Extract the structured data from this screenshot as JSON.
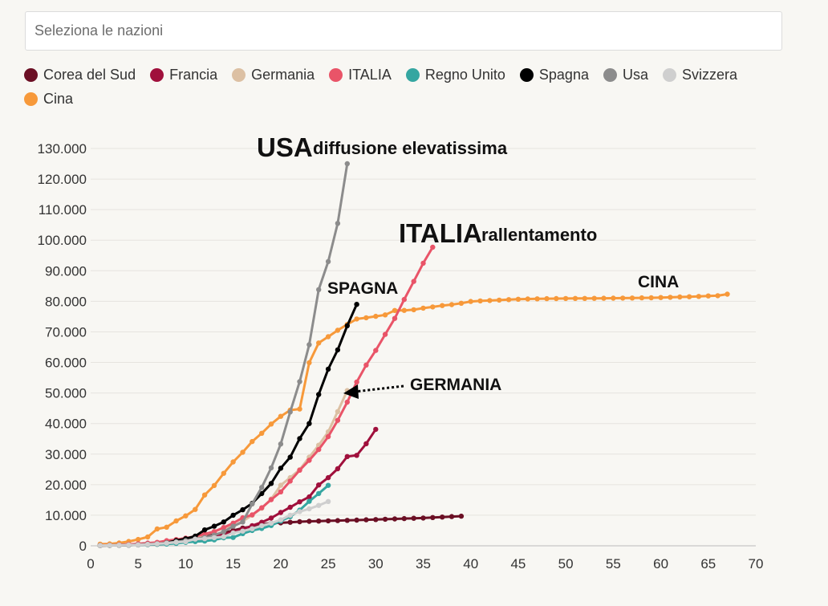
{
  "search": {
    "placeholder": "Seleziona le nazioni"
  },
  "legend": [
    {
      "key": "corea",
      "label": "Corea del Sud",
      "color": "#6b0f24"
    },
    {
      "key": "francia",
      "label": "Francia",
      "color": "#a0103c"
    },
    {
      "key": "germania",
      "label": "Germania",
      "color": "#dcc0a3"
    },
    {
      "key": "italia",
      "label": "ITALIA",
      "color": "#e95468"
    },
    {
      "key": "regno-unito",
      "label": "Regno Unito",
      "color": "#35a6a1"
    },
    {
      "key": "spagna",
      "label": "Spagna",
      "color": "#000000"
    },
    {
      "key": "usa",
      "label": "Usa",
      "color": "#8c8c8c"
    },
    {
      "key": "svizzera",
      "label": "Svizzera",
      "color": "#cfcfcf"
    },
    {
      "key": "cina",
      "label": "Cina",
      "color": "#f7993a"
    }
  ],
  "annotations": {
    "usa_big": "USA",
    "usa_small": "diffusione elevatissima",
    "italia_big": "ITALIA",
    "italia_small": "rallentamento",
    "spagna": "SPAGNA",
    "cina": "CINA",
    "germania": "GERMANIA"
  },
  "chart_data": {
    "type": "line",
    "xlim": [
      0,
      70
    ],
    "ylim": [
      0,
      130000
    ],
    "xticks": [
      0,
      5,
      10,
      15,
      20,
      25,
      30,
      35,
      40,
      45,
      50,
      55,
      60,
      65,
      70
    ],
    "xtick_labels": [
      "0",
      "5",
      "10",
      "15",
      "20",
      "25",
      "30",
      "35",
      "40",
      "45",
      "50",
      "55",
      "60",
      "65",
      "70"
    ],
    "yticks": [
      0,
      10000,
      20000,
      30000,
      40000,
      50000,
      60000,
      70000,
      80000,
      90000,
      100000,
      110000,
      120000,
      130000
    ],
    "ytick_labels": [
      "0",
      "10.000",
      "20.000",
      "30.000",
      "40.000",
      "50.000",
      "60.000",
      "70.000",
      "80.000",
      "90.000",
      "100.000",
      "110.000",
      "120.000",
      "130.000"
    ],
    "grid": true,
    "series": [
      {
        "name": "Cina",
        "color": "#f7993a",
        "x": [
          1,
          2,
          3,
          4,
          5,
          6,
          7,
          8,
          9,
          10,
          11,
          12,
          13,
          14,
          15,
          16,
          17,
          18,
          19,
          20,
          21,
          22,
          23,
          24,
          25,
          26,
          27,
          28,
          29,
          30,
          31,
          32,
          33,
          34,
          35,
          36,
          37,
          38,
          39,
          40,
          41,
          42,
          43,
          44,
          45,
          46,
          47,
          48,
          49,
          50,
          51,
          52,
          53,
          54,
          55,
          56,
          57,
          58,
          59,
          60,
          61,
          62,
          63,
          64,
          65,
          66,
          67
        ],
        "y": [
          548,
          643,
          920,
          1406,
          2075,
          2877,
          5509,
          6087,
          8141,
          9802,
          11891,
          16630,
          19716,
          23707,
          27440,
          30587,
          34110,
          36814,
          39829,
          42354,
          44386,
          44759,
          59895,
          66358,
          68413,
          70513,
          72434,
          74211,
          74619,
          75077,
          75550,
          77001,
          77022,
          77241,
          77754,
          78166,
          78600,
          78928,
          79356,
          79932,
          80136,
          80261,
          80386,
          80537,
          80690,
          80770,
          80823,
          80860,
          80887,
          80921,
          80932,
          80945,
          80977,
          81003,
          81021,
          81048,
          81077,
          81116,
          81151,
          81235,
          81300,
          81416,
          81498,
          81600,
          81747,
          81846,
          82341
        ]
      },
      {
        "name": "Corea del Sud",
        "color": "#6b0f24",
        "x": [
          1,
          2,
          3,
          4,
          5,
          6,
          7,
          8,
          9,
          10,
          11,
          12,
          13,
          14,
          15,
          16,
          17,
          18,
          19,
          20,
          21,
          22,
          23,
          24,
          25,
          26,
          27,
          28,
          29,
          30,
          31,
          32,
          33,
          34,
          35,
          36,
          37,
          38,
          39
        ],
        "y": [
          100,
          150,
          250,
          350,
          450,
          600,
          800,
          1100,
          1500,
          2000,
          2400,
          3100,
          3700,
          4200,
          5000,
          5800,
          6300,
          7000,
          7400,
          7500,
          7700,
          7870,
          8000,
          8090,
          8160,
          8240,
          8320,
          8400,
          8500,
          8600,
          8700,
          8800,
          8900,
          9000,
          9100,
          9250,
          9400,
          9550,
          9700
        ]
      },
      {
        "name": "Francia",
        "color": "#a0103c",
        "x": [
          1,
          2,
          3,
          4,
          5,
          6,
          7,
          8,
          9,
          10,
          11,
          12,
          13,
          14,
          15,
          16,
          17,
          18,
          19,
          20,
          21,
          22,
          23,
          24,
          25,
          26,
          27,
          28,
          29,
          30
        ],
        "y": [
          100,
          130,
          190,
          240,
          290,
          420,
          650,
          950,
          1200,
          1400,
          1800,
          2300,
          2900,
          3700,
          4500,
          5400,
          6600,
          7700,
          9100,
          10900,
          12600,
          14400,
          16000,
          19900,
          22300,
          25200,
          29200,
          29600,
          33400,
          38100
        ]
      },
      {
        "name": "Germania",
        "color": "#dcc0a3",
        "x": [
          1,
          2,
          3,
          4,
          5,
          6,
          7,
          8,
          9,
          10,
          11,
          12,
          13,
          14,
          15,
          16,
          17,
          18,
          19,
          20,
          21,
          22,
          23,
          24,
          25,
          26,
          27
        ],
        "y": [
          100,
          130,
          200,
          260,
          400,
          680,
          850,
          1150,
          1500,
          1900,
          2750,
          3700,
          4600,
          5800,
          6500,
          8000,
          10000,
          12300,
          15300,
          19800,
          22300,
          24900,
          29000,
          32900,
          37300,
          43900,
          50800
        ]
      },
      {
        "name": "ITALIA",
        "color": "#e95468",
        "x": [
          1,
          2,
          3,
          4,
          5,
          6,
          7,
          8,
          9,
          10,
          11,
          12,
          13,
          14,
          15,
          16,
          17,
          18,
          19,
          20,
          21,
          22,
          23,
          24,
          25,
          26,
          27,
          28,
          29,
          30,
          31,
          32,
          33,
          34,
          35,
          36
        ],
        "y": [
          150,
          220,
          320,
          450,
          650,
          890,
          1130,
          1690,
          2040,
          2500,
          3090,
          3860,
          4640,
          6000,
          7400,
          9170,
          10150,
          12460,
          15110,
          17660,
          21160,
          24750,
          27980,
          31500,
          35710,
          41040,
          47020,
          53580,
          59140,
          63930,
          69180,
          74390,
          80590,
          86500,
          92470,
          97690
        ]
      },
      {
        "name": "Regno Unito",
        "color": "#35a6a1",
        "x": [
          1,
          2,
          3,
          4,
          5,
          6,
          7,
          8,
          9,
          10,
          11,
          12,
          13,
          14,
          15,
          16,
          17,
          18,
          19,
          20,
          21,
          22,
          23,
          24,
          25
        ],
        "y": [
          100,
          120,
          160,
          210,
          280,
          370,
          460,
          590,
          800,
          1140,
          1390,
          1550,
          1950,
          2630,
          2720,
          3980,
          5020,
          5680,
          6650,
          8080,
          9530,
          11660,
          14540,
          17090,
          19780
        ]
      },
      {
        "name": "Spagna",
        "color": "#000000",
        "x": [
          1,
          2,
          3,
          4,
          5,
          6,
          7,
          8,
          9,
          10,
          11,
          12,
          13,
          14,
          15,
          16,
          17,
          18,
          19,
          20,
          21,
          22,
          23,
          24,
          25,
          26,
          27,
          28
        ],
        "y": [
          100,
          120,
          170,
          230,
          370,
          520,
          660,
          1000,
          1700,
          2300,
          3150,
          5200,
          6400,
          7800,
          10000,
          11800,
          13900,
          17100,
          20400,
          25400,
          29000,
          35100,
          40000,
          49500,
          57800,
          64100,
          72000,
          79000
        ]
      },
      {
        "name": "Usa",
        "color": "#8c8c8c",
        "x": [
          1,
          2,
          3,
          4,
          5,
          6,
          7,
          8,
          9,
          10,
          11,
          12,
          13,
          14,
          15,
          16,
          17,
          18,
          19,
          20,
          21,
          22,
          23,
          24,
          25,
          26,
          27
        ],
        "y": [
          100,
          120,
          160,
          220,
          330,
          480,
          640,
          960,
          1300,
          1700,
          2200,
          2700,
          3500,
          4600,
          6400,
          7800,
          13700,
          19100,
          25500,
          33300,
          43800,
          53700,
          65800,
          83800,
          93000,
          105500,
          125000
        ]
      },
      {
        "name": "Svizzera",
        "color": "#cfcfcf",
        "x": [
          1,
          2,
          3,
          4,
          5,
          6,
          7,
          8,
          9,
          10,
          11,
          12,
          13,
          14,
          15,
          16,
          17,
          18,
          19,
          20,
          21,
          22,
          23,
          24,
          25
        ],
        "y": [
          100,
          150,
          210,
          260,
          340,
          490,
          650,
          860,
          1150,
          1360,
          2200,
          2330,
          2650,
          3000,
          4200,
          4800,
          5600,
          6600,
          7400,
          8500,
          10000,
          11200,
          12100,
          13200,
          14500
        ]
      }
    ]
  }
}
